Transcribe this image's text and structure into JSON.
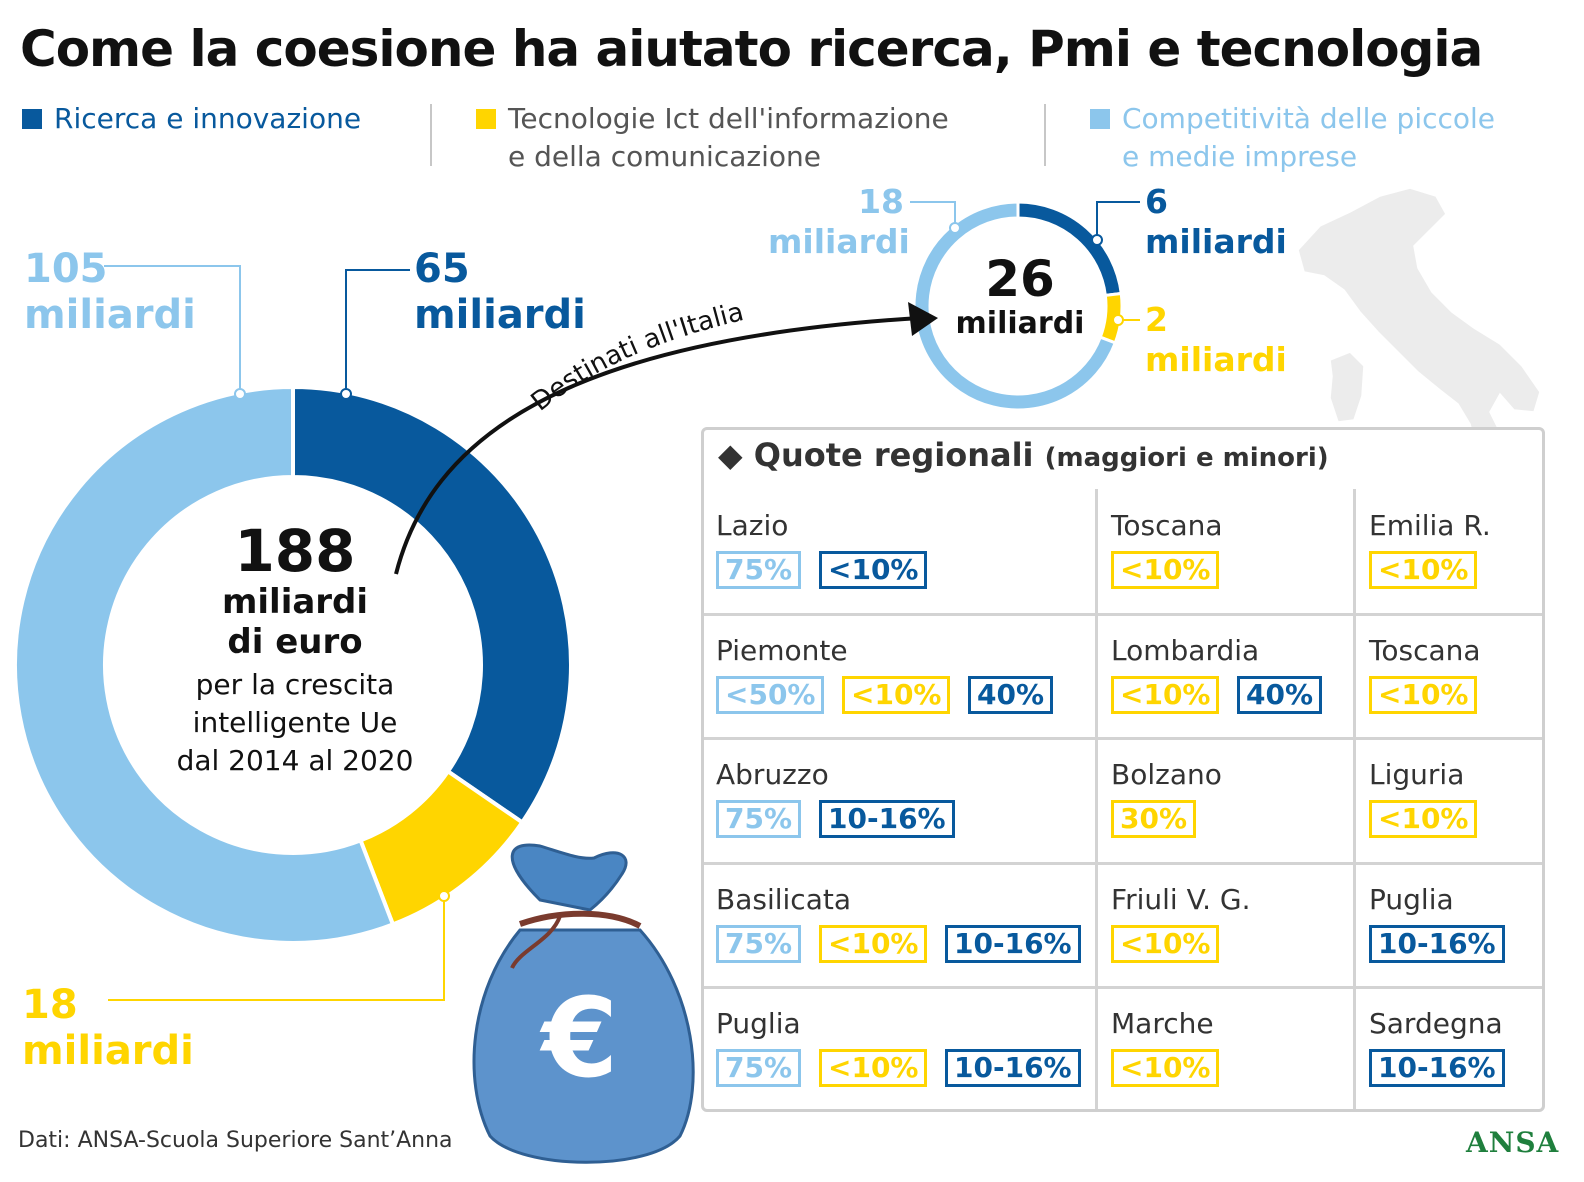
{
  "title": "Come la coesione ha aiutato ricerca, Pmi e tecnologia",
  "colors": {
    "ricerca": "#08599d",
    "ict": "#ffd500",
    "pmi": "#8cc6ec",
    "grid": "#d3d3d3",
    "ansa": "#1f7f3d"
  },
  "legend": [
    {
      "label": "Ricerca e innovazione",
      "line2": "",
      "color": "#08599d"
    },
    {
      "label": "Tecnologie Ict dell'informazione",
      "line2": "e della comunicazione",
      "color": "#ffd500"
    },
    {
      "label": "Competitività delle piccole",
      "line2": "e medie imprese",
      "color": "#8cc6ec"
    }
  ],
  "main_donut": {
    "total": "188",
    "unit_line1": "miliardi",
    "unit_line2": "di euro",
    "desc_line1": "per la crescita",
    "desc_line2": "intelligente Ue",
    "desc_line3": "dal 2014 al 2020",
    "label_pmi_num": "105",
    "label_pmi_unit": "miliardi",
    "label_ricerca_num": "65",
    "label_ricerca_unit": "miliardi",
    "label_ict_num": "18",
    "label_ict_unit": "miliardi"
  },
  "arrow_label": "Destinati all'Italia",
  "italy_donut": {
    "total": "26",
    "unit": "miliardi",
    "label_pmi_num": "18",
    "label_pmi_unit": "miliardi",
    "label_ricerca_num": "6",
    "label_ricerca_unit": "miliardi",
    "label_ict_num": "2",
    "label_ict_unit": "miliardi"
  },
  "chart_data": [
    {
      "type": "pie",
      "title": "",
      "total": 188,
      "unit": "miliardi di euro",
      "categories": [
        "Ricerca e innovazione",
        "Tecnologie Ict dell'informazione e della comunicazione",
        "Competitività delle piccole e medie imprese"
      ],
      "values": [
        65,
        18,
        105
      ]
    },
    {
      "type": "pie",
      "title": "Destinati all'Italia",
      "total": 26,
      "unit": "miliardi",
      "categories": [
        "Ricerca e innovazione",
        "Tecnologie Ict dell'informazione e della comunicazione",
        "Competitività delle piccole e medie imprese"
      ],
      "values": [
        6,
        2,
        18
      ]
    }
  ],
  "quote": {
    "title": "Quote regionali",
    "subtitle": "(maggiori e minori)",
    "cells": [
      {
        "name": "Lazio",
        "badges": [
          {
            "text": "75%",
            "kind": "light"
          },
          {
            "text": "<10%",
            "kind": "dark"
          }
        ]
      },
      {
        "name": "Toscana",
        "badges": [
          {
            "text": "<10%",
            "kind": "yellow"
          }
        ]
      },
      {
        "name": "Emilia R.",
        "badges": [
          {
            "text": "<10%",
            "kind": "yellow"
          }
        ]
      },
      {
        "name": "Piemonte",
        "badges": [
          {
            "text": "<50%",
            "kind": "light"
          },
          {
            "text": "<10%",
            "kind": "yellow"
          },
          {
            "text": "40%",
            "kind": "dark"
          }
        ]
      },
      {
        "name": "Lombardia",
        "badges": [
          {
            "text": "<10%",
            "kind": "yellow"
          },
          {
            "text": "40%",
            "kind": "dark"
          }
        ]
      },
      {
        "name": "Toscana",
        "badges": [
          {
            "text": "<10%",
            "kind": "yellow"
          }
        ]
      },
      {
        "name": "Abruzzo",
        "badges": [
          {
            "text": "75%",
            "kind": "light"
          },
          {
            "text": "10-16%",
            "kind": "dark"
          }
        ]
      },
      {
        "name": "Bolzano",
        "badges": [
          {
            "text": "30%",
            "kind": "yellow"
          }
        ]
      },
      {
        "name": "Liguria",
        "badges": [
          {
            "text": "<10%",
            "kind": "yellow"
          }
        ]
      },
      {
        "name": "Basilicata",
        "badges": [
          {
            "text": "75%",
            "kind": "light"
          },
          {
            "text": "<10%",
            "kind": "yellow"
          },
          {
            "text": "10-16%",
            "kind": "dark"
          }
        ]
      },
      {
        "name": "Friuli V. G.",
        "badges": [
          {
            "text": "<10%",
            "kind": "yellow"
          }
        ]
      },
      {
        "name": "Puglia",
        "badges": [
          {
            "text": "10-16%",
            "kind": "dark"
          }
        ]
      },
      {
        "name": "Puglia",
        "badges": [
          {
            "text": "75%",
            "kind": "light"
          },
          {
            "text": "<10%",
            "kind": "yellow"
          },
          {
            "text": "10-16%",
            "kind": "dark"
          }
        ]
      },
      {
        "name": "Marche",
        "badges": [
          {
            "text": "<10%",
            "kind": "yellow"
          }
        ]
      },
      {
        "name": "Sardegna",
        "badges": [
          {
            "text": "10-16%",
            "kind": "dark"
          }
        ]
      }
    ]
  },
  "source": "Dati: ANSA-Scuola Superiore Sant’Anna",
  "logo": "ANSA",
  "icons": {
    "diamond": "◆",
    "bag": "euro-money-bag",
    "map": "italy-map"
  }
}
